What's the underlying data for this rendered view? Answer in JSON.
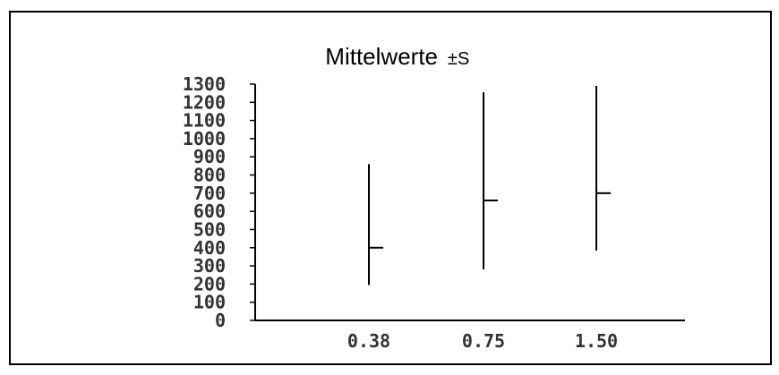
{
  "chart_data": {
    "type": "errorbar",
    "title": "Mittelwerte",
    "title_suffix": "±S",
    "categories": [
      "0.38",
      "0.75",
      "1.50"
    ],
    "series": [
      {
        "mean": [
          400,
          660,
          700
        ],
        "lower": [
          195,
          280,
          385
        ],
        "upper": [
          860,
          1255,
          1290
        ]
      }
    ],
    "y_ticks": [
      "1300",
      "1200",
      "1100",
      "1000",
      "900",
      "800",
      "700",
      "600",
      "500",
      "400",
      "300",
      "200",
      "100",
      "0"
    ],
    "ylim": [
      0,
      1300
    ],
    "grid": false,
    "color": "#000000"
  }
}
